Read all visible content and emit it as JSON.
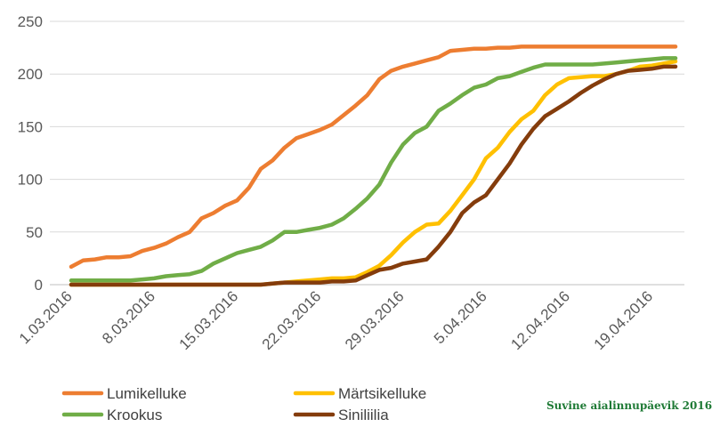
{
  "chart_data": {
    "type": "line",
    "title": "",
    "xlabel": "",
    "ylabel": "",
    "ylim": [
      0,
      250
    ],
    "yticks": [
      0,
      50,
      100,
      150,
      200,
      250
    ],
    "grid": "horizontal",
    "legend_position": "bottom",
    "x": [
      "1.03.2016",
      "2.03.2016",
      "3.03.2016",
      "4.03.2016",
      "5.03.2016",
      "6.03.2016",
      "7.03.2016",
      "8.03.2016",
      "9.03.2016",
      "10.03.2016",
      "11.03.2016",
      "12.03.2016",
      "13.03.2016",
      "14.03.2016",
      "15.03.2016",
      "16.03.2016",
      "17.03.2016",
      "18.03.2016",
      "19.03.2016",
      "20.03.2016",
      "21.03.2016",
      "22.03.2016",
      "23.03.2016",
      "24.03.2016",
      "25.03.2016",
      "26.03.2016",
      "27.03.2016",
      "28.03.2016",
      "29.03.2016",
      "30.03.2016",
      "31.03.2016",
      "1.04.2016",
      "2.04.2016",
      "3.04.2016",
      "4.04.2016",
      "5.04.2016",
      "6.04.2016",
      "7.04.2016",
      "8.04.2016",
      "9.04.2016",
      "10.04.2016",
      "11.04.2016",
      "12.04.2016",
      "13.04.2016",
      "14.04.2016",
      "15.04.2016",
      "16.04.2016",
      "17.04.2016",
      "18.04.2016",
      "19.04.2016",
      "20.04.2016",
      "21.04.2016"
    ],
    "x_tick_labels": [
      "1.03.2016",
      "8.03.2016",
      "15.03.2016",
      "22.03.2016",
      "29.03.2016",
      "5.04.2016",
      "12.04.2016",
      "19.04.2016"
    ],
    "x_tick_indices": [
      0,
      7,
      14,
      21,
      28,
      35,
      42,
      49
    ],
    "series": [
      {
        "name": "Lumikelluke",
        "color": "#ed7d31",
        "values": [
          17,
          23,
          24,
          26,
          26,
          27,
          32,
          35,
          39,
          45,
          50,
          63,
          68,
          75,
          80,
          92,
          110,
          118,
          130,
          139,
          143,
          147,
          152,
          161,
          170,
          180,
          195,
          203,
          207,
          210,
          213,
          216,
          222,
          223,
          224,
          224,
          225,
          225,
          226,
          226,
          226,
          226,
          226,
          226,
          226,
          226,
          226,
          226,
          226,
          226,
          226,
          226
        ]
      },
      {
        "name": "Märtsikelluke",
        "color": "#ffc000",
        "values": [
          0,
          0,
          0,
          0,
          0,
          0,
          0,
          0,
          0,
          0,
          0,
          0,
          0,
          0,
          0,
          0,
          0,
          1,
          2,
          3,
          4,
          5,
          6,
          6,
          7,
          12,
          18,
          28,
          40,
          50,
          57,
          58,
          70,
          85,
          100,
          120,
          130,
          145,
          157,
          165,
          180,
          190,
          196,
          197,
          198,
          198,
          200,
          203,
          207,
          208,
          210,
          212
        ]
      },
      {
        "name": "Krookus",
        "color": "#70ad47",
        "values": [
          4,
          4,
          4,
          4,
          4,
          4,
          5,
          6,
          8,
          9,
          10,
          13,
          20,
          25,
          30,
          33,
          36,
          42,
          50,
          50,
          52,
          54,
          57,
          63,
          72,
          82,
          95,
          116,
          133,
          144,
          150,
          165,
          172,
          180,
          187,
          190,
          196,
          198,
          202,
          206,
          209,
          209,
          209,
          209,
          209,
          210,
          211,
          212,
          213,
          214,
          215,
          215
        ]
      },
      {
        "name": "Siniliilia",
        "color": "#843c0c",
        "values": [
          0,
          0,
          0,
          0,
          0,
          0,
          0,
          0,
          0,
          0,
          0,
          0,
          0,
          0,
          0,
          0,
          0,
          1,
          2,
          2,
          2,
          2,
          3,
          3,
          4,
          9,
          14,
          16,
          20,
          22,
          24,
          36,
          50,
          68,
          78,
          85,
          100,
          115,
          133,
          148,
          160,
          167,
          174,
          182,
          189,
          195,
          200,
          203,
          204,
          205,
          207,
          207
        ]
      }
    ]
  },
  "watermark": "Suvine aialinnupäevik 2016"
}
